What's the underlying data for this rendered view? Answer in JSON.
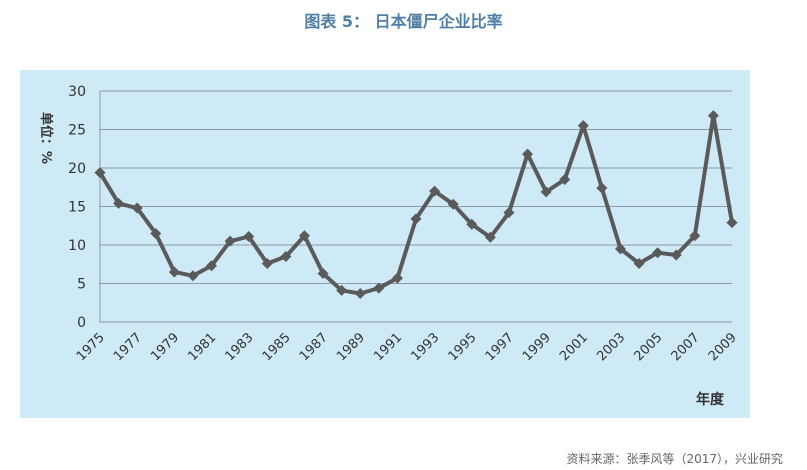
{
  "title": "图表 5： 日本僵尸企业比率",
  "source": "资料来源：张季风等（2017），兴业研究",
  "chart_data": {
    "type": "line",
    "title": "图表 5： 日本僵尸企业比率",
    "ylabel": "单位：%",
    "xlabel": "年度",
    "ylim": [
      0,
      30
    ],
    "yticks": [
      0,
      5,
      10,
      15,
      20,
      25,
      30
    ],
    "grid": true,
    "x": [
      1975,
      1976,
      1977,
      1978,
      1979,
      1980,
      1981,
      1982,
      1983,
      1984,
      1985,
      1986,
      1987,
      1988,
      1989,
      1990,
      1991,
      1992,
      1993,
      1994,
      1995,
      1996,
      1997,
      1998,
      1999,
      2000,
      2001,
      2002,
      2003,
      2004,
      2005,
      2006,
      2007,
      2008,
      2009
    ],
    "xtick_labels": [
      "1975",
      "1977",
      "1979",
      "1981",
      "1983",
      "1985",
      "1987",
      "1989",
      "1991",
      "1993",
      "1995",
      "1997",
      "1999",
      "2001",
      "2003",
      "2005",
      "2007",
      "2009"
    ],
    "series": [
      {
        "values": [
          19.4,
          15.4,
          14.8,
          11.5,
          6.5,
          6.0,
          7.3,
          10.5,
          11.1,
          7.6,
          8.5,
          11.2,
          6.3,
          4.1,
          3.7,
          4.4,
          5.7,
          13.4,
          17.0,
          15.3,
          12.7,
          11.0,
          14.2,
          21.8,
          16.9,
          18.5,
          25.5,
          17.4,
          9.5,
          7.6,
          9.0,
          8.7,
          11.2,
          26.8,
          12.9
        ],
        "color": "#5a5a5a"
      }
    ]
  }
}
